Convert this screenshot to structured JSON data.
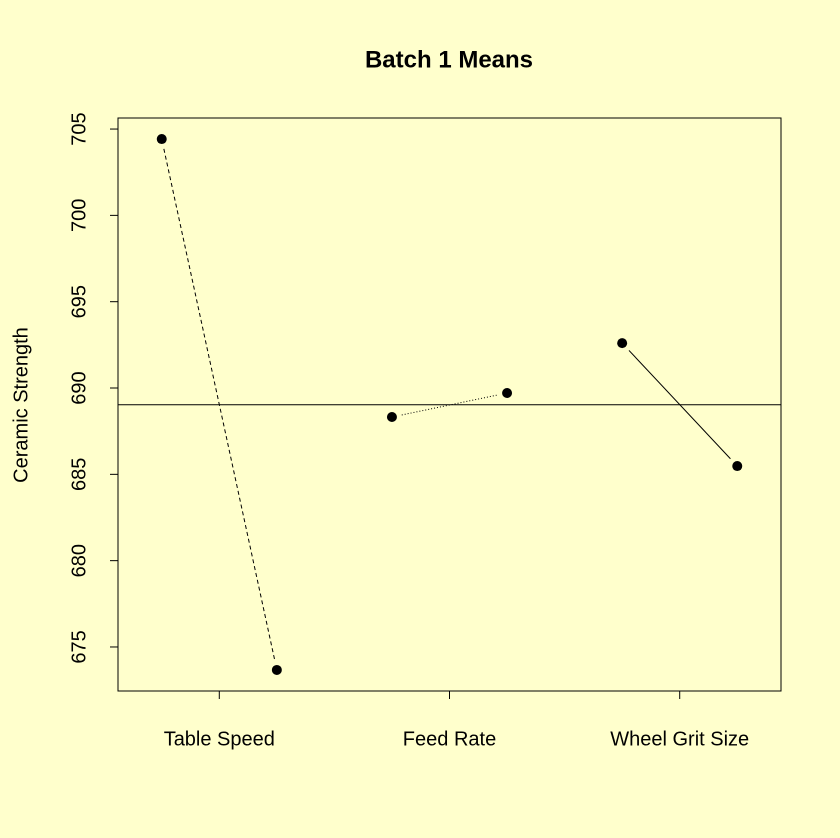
{
  "chart_data": {
    "type": "line",
    "title": "Batch 1 Means",
    "y_label": "Ceramic Strength",
    "categories": [
      "Table Speed",
      "Feed Rate",
      "Wheel Grit Size"
    ],
    "values": [
      [
        704.42,
        673.67
      ],
      [
        688.32,
        689.71
      ],
      [
        692.6,
        685.48
      ]
    ],
    "line_styles": [
      "dashed",
      "dotted",
      "solid"
    ],
    "reference_line": 689.03,
    "color": "#000000",
    "background": "#ffffcc",
    "ylim": [
      672.45,
      705.64
    ],
    "yticks": [
      675,
      680,
      685,
      690,
      695,
      700,
      705
    ]
  }
}
